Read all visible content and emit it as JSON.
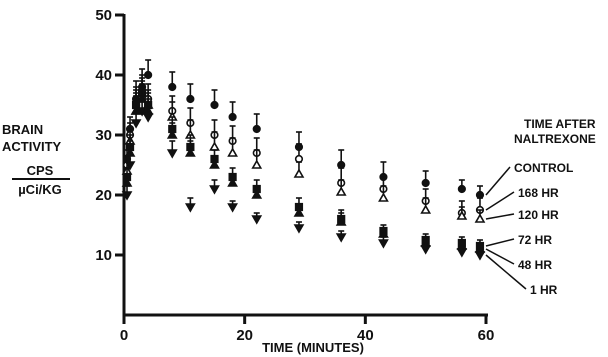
{
  "chart_data": {
    "type": "scatter",
    "xlabel": "TIME (MINUTES)",
    "ylabel_lines": [
      "BRAIN",
      "ACTIVITY"
    ],
    "ylabel_units_numerator": "CPS",
    "ylabel_units_denominator": "µCi/KG",
    "legend_title_lines": [
      "TIME AFTER",
      "NALTREXONE"
    ],
    "xlim": [
      0,
      60
    ],
    "ylim": [
      0,
      50
    ],
    "xticks": [
      0,
      20,
      40,
      60
    ],
    "yticks": [
      10,
      20,
      30,
      40,
      50
    ],
    "grid": false,
    "series": [
      {
        "name": "CONTROL",
        "marker": "filled-circle",
        "x": [
          0.5,
          1,
          2,
          3,
          4,
          8,
          11,
          15,
          18,
          22,
          29,
          36,
          43,
          50,
          56,
          59
        ],
        "y": [
          26,
          31,
          36,
          38,
          40,
          38,
          36,
          35,
          33,
          31,
          28,
          25,
          23,
          22,
          21,
          20
        ],
        "err": [
          1.5,
          2,
          3,
          3,
          2.5,
          2.5,
          2.5,
          2.5,
          2.5,
          2.5,
          2.5,
          2.5,
          2.5,
          2,
          1.5,
          1.5
        ]
      },
      {
        "name": "168 HR",
        "marker": "open-circle",
        "x": [
          0.5,
          1,
          2,
          3,
          4,
          8,
          11,
          15,
          18,
          22,
          29,
          36,
          43,
          50,
          56,
          59
        ],
        "y": [
          25,
          30,
          35,
          37,
          36,
          34,
          32,
          30,
          29,
          27,
          26,
          22,
          21,
          19,
          17,
          17.5
        ],
        "err": [
          1.5,
          2,
          3,
          3,
          2.5,
          2.5,
          2.5,
          2.5,
          2.5,
          2.5,
          2.5,
          2.5,
          2,
          2,
          2,
          2
        ]
      },
      {
        "name": "120 HR",
        "marker": "open-triangle",
        "x": [
          0.5,
          1,
          2,
          3,
          4,
          8,
          11,
          15,
          18,
          22,
          29,
          36,
          43,
          50,
          56,
          59
        ],
        "y": [
          24,
          29,
          34,
          36,
          35,
          33,
          30,
          28,
          27,
          25,
          23.5,
          20.5,
          19.5,
          17.5,
          16.5,
          16
        ],
        "err": [
          1.5,
          2,
          3,
          3,
          2.5,
          2.5,
          2.5,
          2.5,
          2.5,
          2.5,
          2,
          2,
          2,
          2,
          1.5,
          1.5
        ]
      },
      {
        "name": "72 HR",
        "marker": "filled-square",
        "x": [
          0.5,
          1,
          2,
          3,
          4,
          8,
          11,
          15,
          18,
          22,
          29,
          36,
          43,
          50,
          56,
          59
        ],
        "y": [
          23,
          28,
          35,
          37,
          35,
          31,
          28,
          26,
          23,
          21,
          18,
          16,
          14,
          12.5,
          12,
          11.5
        ],
        "err": [
          1.5,
          2,
          2.5,
          2.5,
          2,
          2,
          2,
          1.5,
          1.5,
          1.5,
          1.5,
          1.5,
          1,
          1,
          1,
          1
        ]
      },
      {
        "name": "48 HR",
        "marker": "filled-triangle",
        "x": [
          0.5,
          1,
          2,
          3,
          4,
          8,
          11,
          15,
          18,
          22,
          29,
          36,
          43,
          50,
          56,
          59
        ],
        "y": [
          22,
          27,
          34,
          36,
          34,
          30,
          27,
          25,
          22,
          20,
          17,
          15.5,
          13.5,
          12,
          11.5,
          11
        ],
        "err": [
          1.5,
          2,
          2.5,
          2.5,
          2,
          2,
          2,
          1.5,
          1.5,
          1.5,
          1.5,
          1.5,
          1,
          1,
          1,
          1
        ]
      },
      {
        "name": "1 HR",
        "marker": "filled-inverted-triangle",
        "x": [
          0.5,
          1,
          2,
          3,
          4,
          8,
          11,
          15,
          18,
          22,
          29,
          36,
          43,
          50,
          56,
          59
        ],
        "y": [
          20,
          25,
          32,
          34,
          33,
          27,
          18,
          21,
          18,
          16,
          14.5,
          13,
          12,
          11,
          10.5,
          10
        ],
        "err": [
          1.5,
          2,
          2.5,
          2.5,
          2,
          2,
          1.5,
          1.5,
          1,
          1,
          1,
          1,
          1,
          1,
          1,
          1
        ]
      }
    ]
  }
}
